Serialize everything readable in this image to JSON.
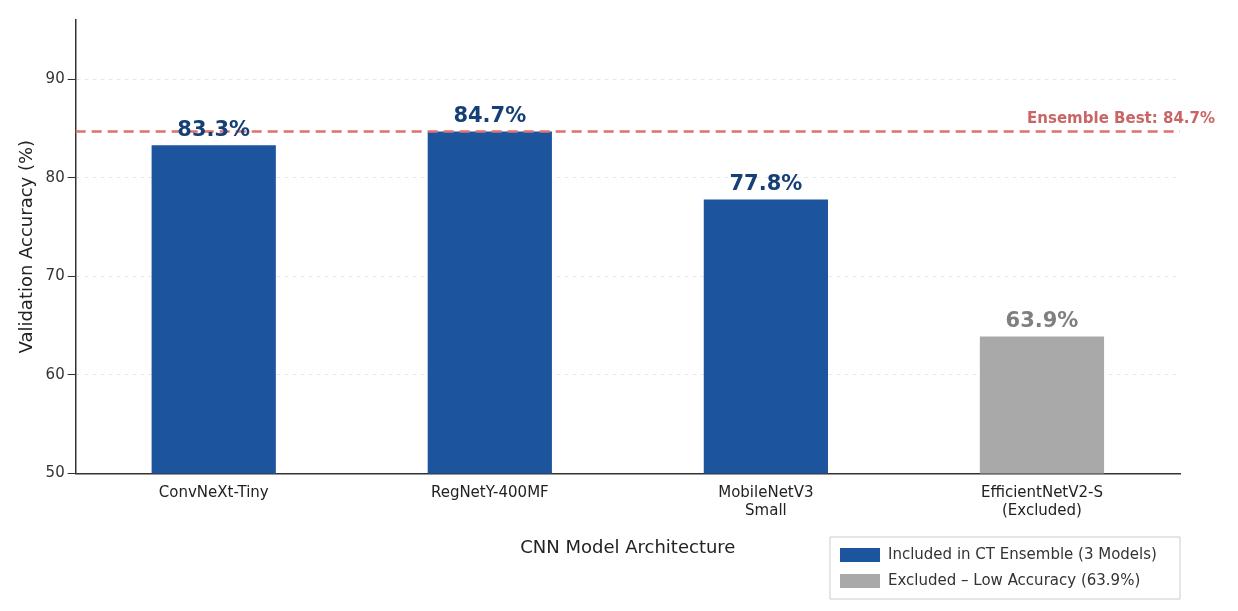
{
  "chart_data": {
    "type": "bar",
    "xlabel": "CNN Model Architecture",
    "ylabel": "Validation Accuracy (%)",
    "categories": [
      "ConvNeXt-Tiny",
      "RegNetY-400MF",
      "MobileNetV3\nSmall",
      "EfficientNetV2-S\n(Excluded)"
    ],
    "series": [
      {
        "name": "Included in CT Ensemble (3 Models)",
        "color": "#1c559e",
        "values": [
          83.3,
          84.7,
          77.8,
          null
        ],
        "value_labels": [
          "83.3%",
          "84.7%",
          "77.8%",
          null
        ]
      },
      {
        "name": "Excluded – Low Accuracy (63.9%)",
        "color": "#a9a9a9",
        "values": [
          null,
          null,
          null,
          63.9
        ],
        "value_labels": [
          null,
          null,
          null,
          "63.9%"
        ]
      }
    ],
    "ylim": [
      50,
      96
    ],
    "yticks": [
      50,
      60,
      70,
      80,
      90
    ],
    "grid": "y",
    "legend": "bottom right",
    "ref_lines": [
      {
        "axis": "y",
        "value": 84.7,
        "label": "Ensemble Best: 84.7%",
        "color": "#e07070",
        "line_style": "dashed"
      }
    ]
  }
}
